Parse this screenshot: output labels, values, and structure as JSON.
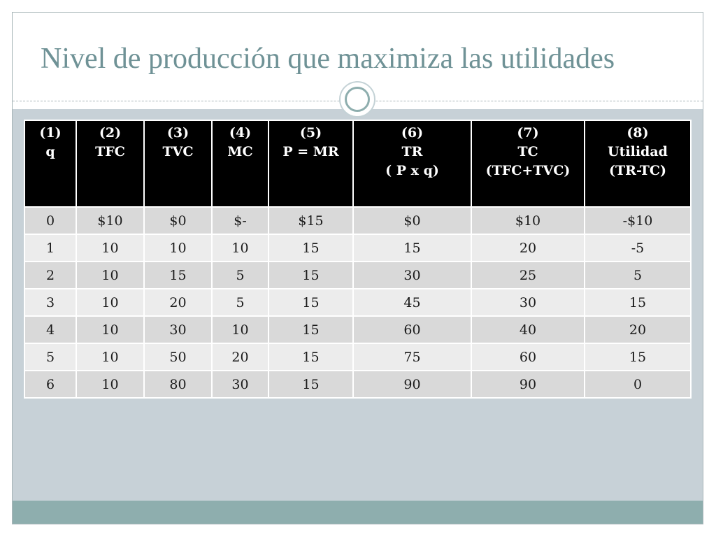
{
  "title": "Nivel de producción que maximiza las utilidades",
  "table": {
    "headers": [
      [
        "(1)",
        "q"
      ],
      [
        "(2)",
        "TFC"
      ],
      [
        "(3)",
        "TVC"
      ],
      [
        "(4)",
        "MC"
      ],
      [
        "(5)",
        "P = MR"
      ],
      [
        "(6)",
        "TR",
        "( P  x q)"
      ],
      [
        "(7)",
        "TC",
        "(TFC+TVC)"
      ],
      [
        "(8)",
        "Utilidad",
        "(TR-TC)"
      ]
    ],
    "rows": [
      [
        "0",
        "$10",
        "$0",
        "$-",
        "$15",
        "$0",
        "$10",
        "-$10"
      ],
      [
        "1",
        "10",
        "10",
        "10",
        "15",
        "15",
        "20",
        "-5"
      ],
      [
        "2",
        "10",
        "15",
        "5",
        "15",
        "30",
        "25",
        "5"
      ],
      [
        "3",
        "10",
        "20",
        "5",
        "15",
        "45",
        "30",
        "15"
      ],
      [
        "4",
        "10",
        "30",
        "10",
        "15",
        "60",
        "40",
        "20"
      ],
      [
        "5",
        "10",
        "50",
        "20",
        "15",
        "75",
        "60",
        "15"
      ],
      [
        "6",
        "10",
        "80",
        "30",
        "15",
        "90",
        "90",
        "0"
      ]
    ]
  },
  "colors": {
    "title": "#6f9296",
    "content_band": "#c7d1d7",
    "footer_bar": "#8eaeae",
    "header_bg": "#000000",
    "row_odd": "#d9d9d9",
    "row_even": "#ececec"
  }
}
